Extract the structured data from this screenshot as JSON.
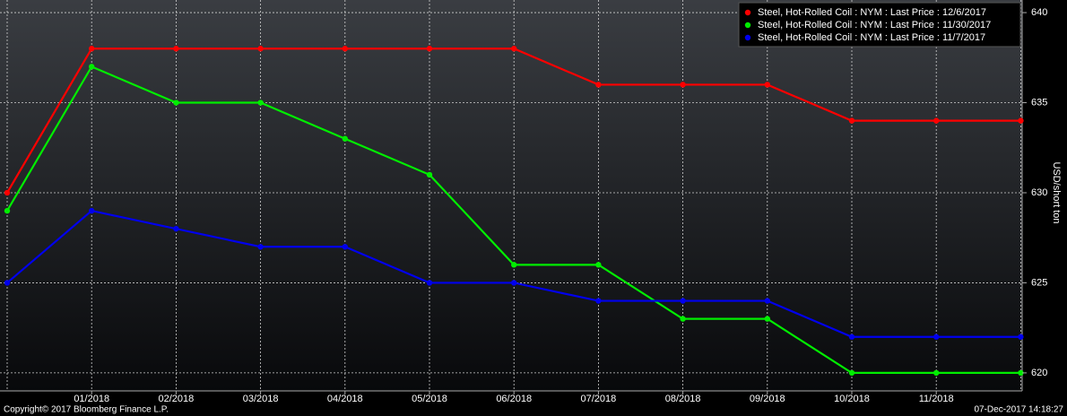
{
  "chart_data": {
    "type": "line",
    "y_axis_label": "USD/short ton",
    "categories": [
      null,
      "01/2018",
      "02/2018",
      "03/2018",
      "04/2018",
      "05/2018",
      "06/2018",
      "07/2018",
      "08/2018",
      "09/2018",
      "10/2018",
      "11/2018",
      null
    ],
    "series": [
      {
        "name": "Steel, Hot-Rolled Coil : NYM : Last Price : 12/6/2017",
        "color": "#ff0000",
        "values": [
          630,
          638,
          638,
          638,
          638,
          638,
          638,
          636,
          636,
          636,
          634,
          634,
          634
        ]
      },
      {
        "name": "Steel, Hot-Rolled Coil : NYM : Last Price : 11/30/2017",
        "color": "#00ee00",
        "values": [
          629,
          637,
          635,
          635,
          633,
          631,
          626,
          626,
          623,
          623,
          620,
          620,
          620
        ]
      },
      {
        "name": "Steel, Hot-Rolled Coil : NYM : Last Price : 11/7/2017",
        "color": "#0000ee",
        "values": [
          625,
          629,
          628,
          627,
          627,
          625,
          625,
          624,
          624,
          624,
          622,
          622,
          622
        ]
      }
    ],
    "ylim": [
      619,
      640.7
    ],
    "yticks": [
      620,
      625,
      630,
      635,
      640
    ],
    "grid": true,
    "legend": "top-right",
    "footer_left": "Copyright© 2017 Bloomberg Finance L.P.",
    "footer_right": "07-Dec-2017 14:18:27"
  }
}
